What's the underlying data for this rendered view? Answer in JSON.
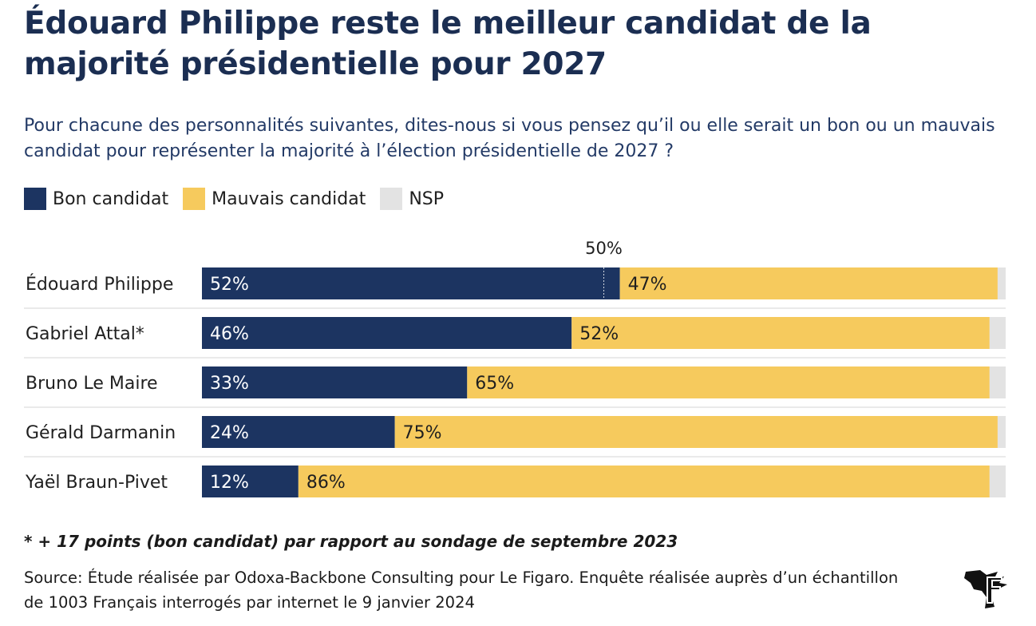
{
  "header": {
    "title": "Édouard Philippe reste le meilleur candidat de la majorité présidentielle pour 2027",
    "subtitle": "Pour chacune des personnalités suivantes, dites-nous si vous pensez qu’il ou elle serait un bon ou un mauvais candidat pour représenter la majorité à l’élection présidentielle de 2027 ?"
  },
  "legend": [
    {
      "label": "Bon candidat",
      "color": "#1c3461"
    },
    {
      "label": "Mauvais candidat",
      "color": "#f6ca5d"
    },
    {
      "label": "NSP",
      "color": "#e3e3e3"
    }
  ],
  "chart_data": {
    "type": "bar",
    "orientation": "horizontal",
    "stacked": true,
    "categories": [
      "Édouard Philippe",
      "Gabriel Attal*",
      "Bruno Le Maire",
      "Gérald Darmanin",
      "Yaël Braun-Pivet"
    ],
    "series": [
      {
        "name": "Bon candidat",
        "values": [
          52,
          46,
          33,
          24,
          12
        ],
        "color": "#1c3461"
      },
      {
        "name": "Mauvais candidat",
        "values": [
          47,
          52,
          65,
          75,
          86
        ],
        "color": "#f6ca5d"
      },
      {
        "name": "NSP",
        "values": [
          1,
          2,
          2,
          1,
          2
        ],
        "color": "#e3e3e3"
      }
    ],
    "reference_line": {
      "value": 50,
      "label": "50%"
    },
    "xlim": [
      0,
      100
    ],
    "unit": "%"
  },
  "footer": {
    "footnote": "* + 17 points (bon candidat) par rapport au sondage de septembre 2023",
    "source": "Source: Étude réalisée par Odoxa-Backbone Consulting pour Le Figaro. Enquête réalisée auprès d’un échantillon de 1003 Français interrogés par internet le 9 janvier 2024"
  }
}
